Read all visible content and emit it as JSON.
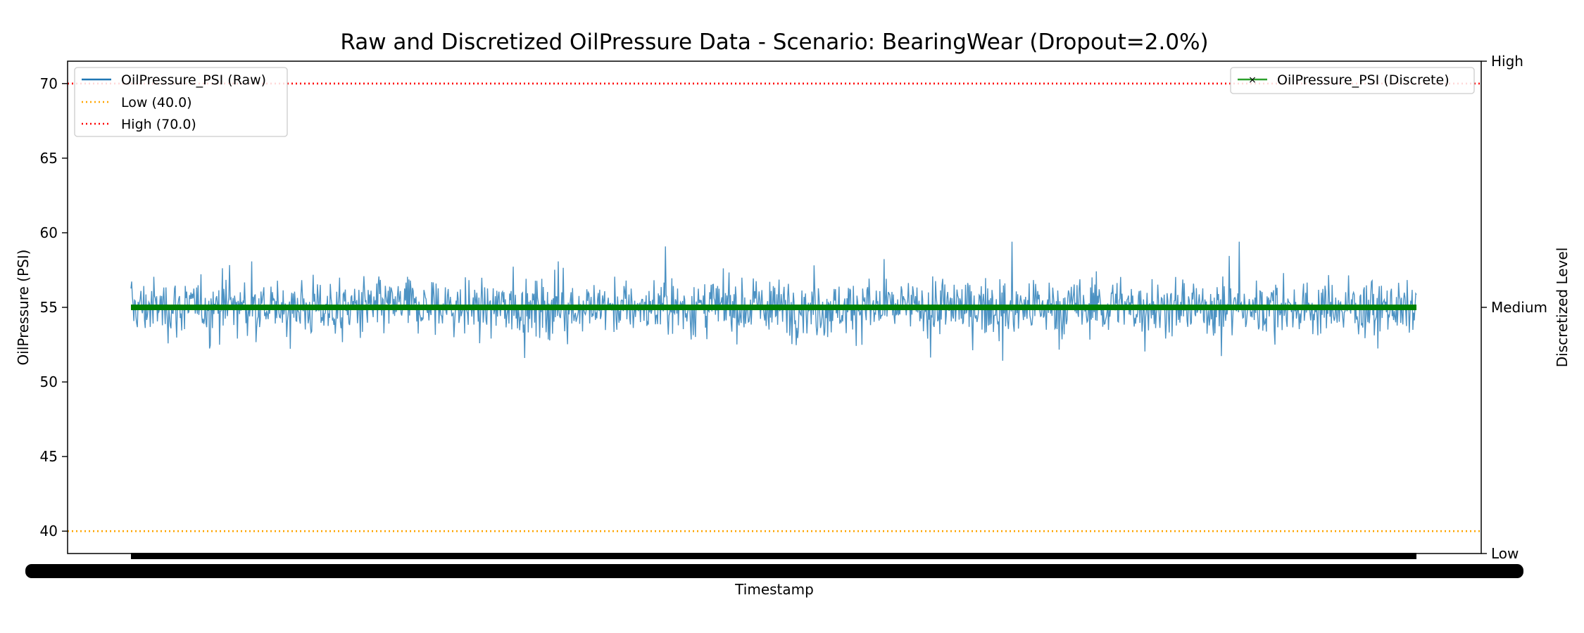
{
  "chart_data": {
    "type": "line",
    "title": "Raw and Discretized OilPressure Data - Scenario: BearingWear (Dropout=2.0%)",
    "xlabel": "Timestamp",
    "ylabel": "OilPressure (PSI)",
    "ylabel_right": "Discretized Level",
    "ylim": [
      38.5,
      71.5
    ],
    "yticks": [
      40,
      45,
      50,
      55,
      60,
      65,
      70
    ],
    "right_ticks": [
      "Low",
      "Medium",
      "High"
    ],
    "x_tick_labels_note": "Dense overlapping timestamp tick labels rendered as an illegible black band",
    "thresholds": [
      {
        "name": "Low (40.0)",
        "value": 40.0,
        "color": "#ffa500"
      },
      {
        "name": "High (70.0)",
        "value": 70.0,
        "color": "#ff0000"
      }
    ],
    "series": [
      {
        "name": "OilPressure_PSI (Raw)",
        "color": "#1f77b4",
        "axis": "left",
        "points": 1800,
        "mean": 55.0,
        "typical_range": [
          52.5,
          57.5
        ],
        "max": 59.4,
        "min": 51.0
      },
      {
        "name": "OilPressure_PSI (Discrete)",
        "color": "#008000",
        "axis": "right",
        "level": "Medium",
        "marker": "x"
      }
    ],
    "legend_left": [
      "OilPressure_PSI (Raw)",
      "Low (40.0)",
      "High (70.0)"
    ],
    "legend_right": [
      "OilPressure_PSI (Discrete)"
    ],
    "legend_left_placement": "top-left",
    "legend_right_placement": "top-right",
    "grid": false
  }
}
